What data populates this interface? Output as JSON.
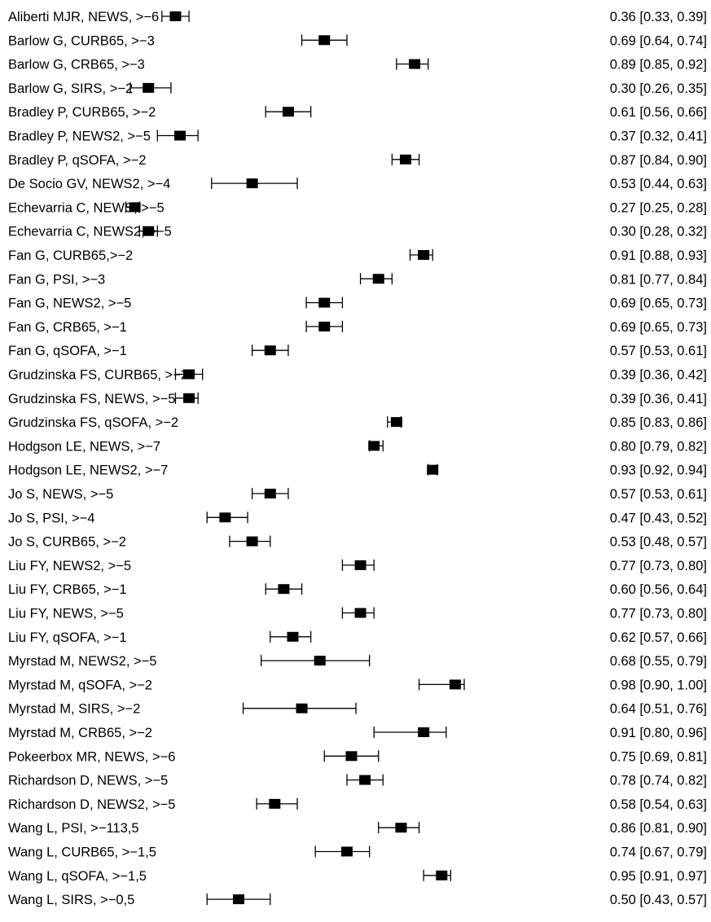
{
  "chart_data": {
    "type": "forest",
    "colors": {
      "ink": "#000000",
      "background": "#ffffff"
    },
    "rows": [
      {
        "label": "Aliberti MJR, NEWS, >−6",
        "est": 0.36,
        "lo": 0.33,
        "hi": 0.39,
        "ci_text": "0.36 [0.33, 0.39]"
      },
      {
        "label": "Barlow G, CURB65, >−3",
        "est": 0.69,
        "lo": 0.64,
        "hi": 0.74,
        "ci_text": "0.69 [0.64, 0.74]"
      },
      {
        "label": "Barlow G, CRB65, >−3",
        "est": 0.89,
        "lo": 0.85,
        "hi": 0.92,
        "ci_text": "0.89 [0.85, 0.92]"
      },
      {
        "label": "Barlow G, SIRS, >−2",
        "est": 0.3,
        "lo": 0.26,
        "hi": 0.35,
        "ci_text": "0.30 [0.26, 0.35]"
      },
      {
        "label": "Bradley P, CURB65, >−2",
        "est": 0.61,
        "lo": 0.56,
        "hi": 0.66,
        "ci_text": "0.61 [0.56, 0.66]"
      },
      {
        "label": "Bradley P, NEWS2, >−5",
        "est": 0.37,
        "lo": 0.32,
        "hi": 0.41,
        "ci_text": "0.37 [0.32, 0.41]"
      },
      {
        "label": "Bradley P, qSOFA, >−2",
        "est": 0.87,
        "lo": 0.84,
        "hi": 0.9,
        "ci_text": "0.87 [0.84, 0.90]"
      },
      {
        "label": "De Socio GV, NEWS2, >−4",
        "est": 0.53,
        "lo": 0.44,
        "hi": 0.63,
        "ci_text": "0.53 [0.44, 0.63]"
      },
      {
        "label": "Echevarria C, NEWS, >−5",
        "est": 0.27,
        "lo": 0.25,
        "hi": 0.28,
        "ci_text": "0.27 [0.25, 0.28]"
      },
      {
        "label": "Echevarria C, NEWS2, >−5",
        "est": 0.3,
        "lo": 0.28,
        "hi": 0.32,
        "ci_text": "0.30 [0.28, 0.32]"
      },
      {
        "label": "Fan G, CURB65,>−2",
        "est": 0.91,
        "lo": 0.88,
        "hi": 0.93,
        "ci_text": "0.91 [0.88, 0.93]"
      },
      {
        "label": "Fan G, PSI, >−3",
        "est": 0.81,
        "lo": 0.77,
        "hi": 0.84,
        "ci_text": "0.81 [0.77, 0.84]"
      },
      {
        "label": "Fan G, NEWS2, >−5",
        "est": 0.69,
        "lo": 0.65,
        "hi": 0.73,
        "ci_text": "0.69 [0.65, 0.73]"
      },
      {
        "label": "Fan G, CRB65, >−1",
        "est": 0.69,
        "lo": 0.65,
        "hi": 0.73,
        "ci_text": "0.69 [0.65, 0.73]"
      },
      {
        "label": "Fan G, qSOFA, >−1",
        "est": 0.57,
        "lo": 0.53,
        "hi": 0.61,
        "ci_text": "0.57 [0.53, 0.61]"
      },
      {
        "label": "Grudzinska FS, CURB65, >−2",
        "est": 0.39,
        "lo": 0.36,
        "hi": 0.42,
        "ci_text": "0.39 [0.36, 0.42]"
      },
      {
        "label": "Grudzinska FS, NEWS, >−5",
        "est": 0.39,
        "lo": 0.36,
        "hi": 0.41,
        "ci_text": "0.39 [0.36, 0.41]"
      },
      {
        "label": "Grudzinska FS, qSOFA, >−2",
        "est": 0.85,
        "lo": 0.83,
        "hi": 0.86,
        "ci_text": "0.85 [0.83, 0.86]"
      },
      {
        "label": "Hodgson LE, NEWS, >−7",
        "est": 0.8,
        "lo": 0.79,
        "hi": 0.82,
        "ci_text": "0.80 [0.79, 0.82]"
      },
      {
        "label": "Hodgson LE, NEWS2, >−7",
        "est": 0.93,
        "lo": 0.92,
        "hi": 0.94,
        "ci_text": "0.93 [0.92, 0.94]"
      },
      {
        "label": "Jo S, NEWS, >−5",
        "est": 0.57,
        "lo": 0.53,
        "hi": 0.61,
        "ci_text": "0.57 [0.53, 0.61]"
      },
      {
        "label": "Jo S, PSI, >−4",
        "est": 0.47,
        "lo": 0.43,
        "hi": 0.52,
        "ci_text": "0.47 [0.43, 0.52]"
      },
      {
        "label": "Jo S, CURB65, >−2",
        "est": 0.53,
        "lo": 0.48,
        "hi": 0.57,
        "ci_text": "0.53 [0.48, 0.57]"
      },
      {
        "label": "Liu FY, NEWS2, >−5",
        "est": 0.77,
        "lo": 0.73,
        "hi": 0.8,
        "ci_text": "0.77 [0.73, 0.80]"
      },
      {
        "label": "Liu FY, CRB65, >−1",
        "est": 0.6,
        "lo": 0.56,
        "hi": 0.64,
        "ci_text": "0.60 [0.56, 0.64]"
      },
      {
        "label": "Liu FY, NEWS, >−5",
        "est": 0.77,
        "lo": 0.73,
        "hi": 0.8,
        "ci_text": "0.77 [0.73, 0.80]"
      },
      {
        "label": "Liu FY, qSOFA, >−1",
        "est": 0.62,
        "lo": 0.57,
        "hi": 0.66,
        "ci_text": "0.62 [0.57, 0.66]"
      },
      {
        "label": "Myrstad M, NEWS2, >−5",
        "est": 0.68,
        "lo": 0.55,
        "hi": 0.79,
        "ci_text": "0.68 [0.55, 0.79]"
      },
      {
        "label": "Myrstad M, qSOFA, >−2",
        "est": 0.98,
        "lo": 0.9,
        "hi": 1.0,
        "ci_text": "0.98 [0.90, 1.00]"
      },
      {
        "label": "Myrstad M, SIRS, >−2",
        "est": 0.64,
        "lo": 0.51,
        "hi": 0.76,
        "ci_text": "0.64 [0.51, 0.76]"
      },
      {
        "label": "Myrstad M, CRB65, >−2",
        "est": 0.91,
        "lo": 0.8,
        "hi": 0.96,
        "ci_text": "0.91 [0.80, 0.96]"
      },
      {
        "label": "Pokeerbox MR, NEWS, >−6",
        "est": 0.75,
        "lo": 0.69,
        "hi": 0.81,
        "ci_text": "0.75 [0.69, 0.81]"
      },
      {
        "label": "Richardson D, NEWS, >−5",
        "est": 0.78,
        "lo": 0.74,
        "hi": 0.82,
        "ci_text": "0.78 [0.74, 0.82]"
      },
      {
        "label": "Richardson D, NEWS2, >−5",
        "est": 0.58,
        "lo": 0.54,
        "hi": 0.63,
        "ci_text": "0.58 [0.54, 0.63]"
      },
      {
        "label": "Wang L, PSI, >−113,5",
        "est": 0.86,
        "lo": 0.81,
        "hi": 0.9,
        "ci_text": "0.86 [0.81, 0.90]"
      },
      {
        "label": "Wang L, CURB65, >−1,5",
        "est": 0.74,
        "lo": 0.67,
        "hi": 0.79,
        "ci_text": "0.74 [0.67, 0.79]"
      },
      {
        "label": "Wang L, qSOFA, >−1,5",
        "est": 0.95,
        "lo": 0.91,
        "hi": 0.97,
        "ci_text": "0.95 [0.91, 0.97]"
      },
      {
        "label": "Wang L, SIRS, >−0,5",
        "est": 0.5,
        "lo": 0.43,
        "hi": 0.57,
        "ci_text": "0.50 [0.43, 0.57]"
      }
    ]
  }
}
